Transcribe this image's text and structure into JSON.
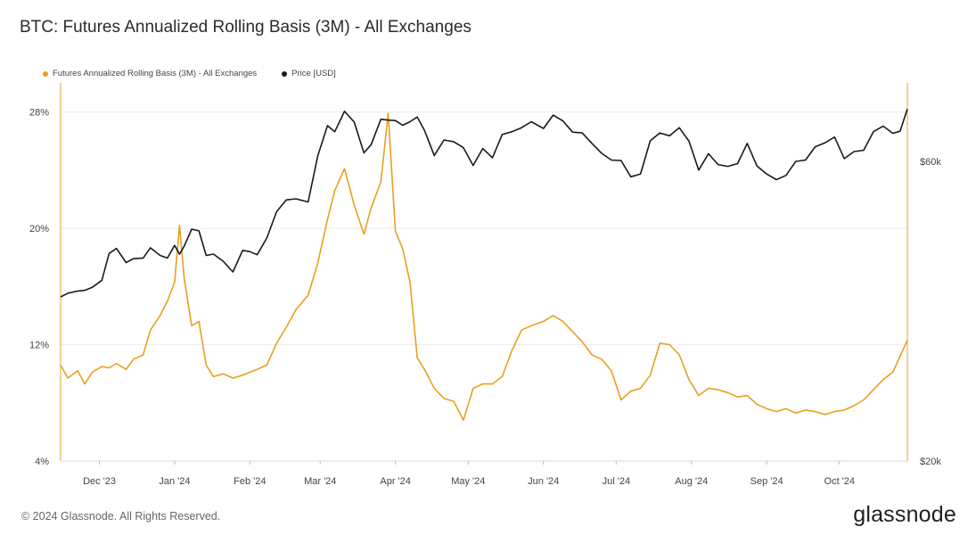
{
  "page": {
    "title": "BTC: Futures Annualized Rolling Basis (3M) - All Exchanges",
    "footer": "© 2024 Glassnode. All Rights Reserved.",
    "brand": "glassnode"
  },
  "chart_data": {
    "type": "line",
    "title": "BTC: Futures Annualized Rolling Basis (3M) - All Exchanges",
    "grid": true,
    "legend_placement": "top-left",
    "x": {
      "start": "2023-11-15",
      "end": "2024-10-29",
      "ticks": [
        {
          "label": "Dec '23",
          "date": "2023-12-01"
        },
        {
          "label": "Jan '24",
          "date": "2024-01-01"
        },
        {
          "label": "Feb '24",
          "date": "2024-02-01"
        },
        {
          "label": "Mar '24",
          "date": "2024-03-01"
        },
        {
          "label": "Apr '24",
          "date": "2024-04-01"
        },
        {
          "label": "May '24",
          "date": "2024-05-01"
        },
        {
          "label": "Jun '24",
          "date": "2024-06-01"
        },
        {
          "label": "Jul '24",
          "date": "2024-07-01"
        },
        {
          "label": "Aug '24",
          "date": "2024-08-01"
        },
        {
          "label": "Sep '24",
          "date": "2024-09-01"
        },
        {
          "label": "Oct '24",
          "date": "2024-10-01"
        }
      ]
    },
    "y_left": {
      "range": [
        4,
        30
      ],
      "ticks": [
        {
          "label": "4%",
          "value": 4
        },
        {
          "label": "12%",
          "value": 12
        },
        {
          "label": "20%",
          "value": 20
        },
        {
          "label": "28%",
          "value": 28
        }
      ]
    },
    "y_right": {
      "scale": "log",
      "range": [
        20000,
        80000
      ],
      "ticks": [
        {
          "label": "$20k",
          "value": 20000
        },
        {
          "label": "$60k",
          "value": 60000
        }
      ]
    },
    "series": [
      {
        "name": "Futures Annualized Rolling Basis (3M) - All Exchanges",
        "color": "#e8a020",
        "axis": "left",
        "points": [
          [
            "2023-11-15",
            10.6
          ],
          [
            "2023-11-18",
            9.7
          ],
          [
            "2023-11-22",
            10.2
          ],
          [
            "2023-11-25",
            9.3
          ],
          [
            "2023-11-28",
            10.1
          ],
          [
            "2023-12-02",
            10.5
          ],
          [
            "2023-12-05",
            10.4
          ],
          [
            "2023-12-08",
            10.7
          ],
          [
            "2023-12-12",
            10.3
          ],
          [
            "2023-12-15",
            11.0
          ],
          [
            "2023-12-19",
            11.3
          ],
          [
            "2023-12-22",
            13.0
          ],
          [
            "2023-12-26",
            14.0
          ],
          [
            "2023-12-29",
            15.0
          ],
          [
            "2024-01-01",
            16.3
          ],
          [
            "2024-01-03",
            20.2
          ],
          [
            "2024-01-05",
            16.5
          ],
          [
            "2024-01-08",
            13.3
          ],
          [
            "2024-01-11",
            13.6
          ],
          [
            "2024-01-14",
            10.6
          ],
          [
            "2024-01-17",
            9.8
          ],
          [
            "2024-01-21",
            10.0
          ],
          [
            "2024-01-25",
            9.7
          ],
          [
            "2024-01-29",
            9.9
          ],
          [
            "2024-02-01",
            10.1
          ],
          [
            "2024-02-04",
            10.3
          ],
          [
            "2024-02-08",
            10.6
          ],
          [
            "2024-02-12",
            12.1
          ],
          [
            "2024-02-16",
            13.2
          ],
          [
            "2024-02-20",
            14.4
          ],
          [
            "2024-02-25",
            15.4
          ],
          [
            "2024-02-29",
            17.6
          ],
          [
            "2024-03-04",
            20.6
          ],
          [
            "2024-03-07",
            22.6
          ],
          [
            "2024-03-11",
            24.1
          ],
          [
            "2024-03-15",
            21.6
          ],
          [
            "2024-03-19",
            19.6
          ],
          [
            "2024-03-22",
            21.4
          ],
          [
            "2024-03-26",
            23.2
          ],
          [
            "2024-03-29",
            27.9
          ],
          [
            "2024-04-01",
            19.8
          ],
          [
            "2024-04-04",
            18.6
          ],
          [
            "2024-04-07",
            16.3
          ],
          [
            "2024-04-10",
            11.1
          ],
          [
            "2024-04-13",
            10.3
          ],
          [
            "2024-04-17",
            9.0
          ],
          [
            "2024-04-21",
            8.3
          ],
          [
            "2024-04-25",
            8.1
          ],
          [
            "2024-04-29",
            6.8
          ],
          [
            "2024-05-03",
            9.0
          ],
          [
            "2024-05-07",
            9.3
          ],
          [
            "2024-05-11",
            9.3
          ],
          [
            "2024-05-15",
            9.8
          ],
          [
            "2024-05-19",
            11.6
          ],
          [
            "2024-05-23",
            13.0
          ],
          [
            "2024-05-27",
            13.3
          ],
          [
            "2024-06-01",
            13.6
          ],
          [
            "2024-06-05",
            14.0
          ],
          [
            "2024-06-09",
            13.6
          ],
          [
            "2024-06-13",
            12.9
          ],
          [
            "2024-06-17",
            12.2
          ],
          [
            "2024-06-21",
            11.3
          ],
          [
            "2024-06-25",
            11.0
          ],
          [
            "2024-06-29",
            10.2
          ],
          [
            "2024-07-03",
            8.2
          ],
          [
            "2024-07-07",
            8.8
          ],
          [
            "2024-07-11",
            9.0
          ],
          [
            "2024-07-15",
            9.9
          ],
          [
            "2024-07-19",
            12.1
          ],
          [
            "2024-07-23",
            12.0
          ],
          [
            "2024-07-27",
            11.3
          ],
          [
            "2024-07-31",
            9.6
          ],
          [
            "2024-08-04",
            8.5
          ],
          [
            "2024-08-08",
            9.0
          ],
          [
            "2024-08-12",
            8.9
          ],
          [
            "2024-08-16",
            8.7
          ],
          [
            "2024-08-20",
            8.4
          ],
          [
            "2024-08-24",
            8.5
          ],
          [
            "2024-08-28",
            7.9
          ],
          [
            "2024-09-01",
            7.6
          ],
          [
            "2024-09-05",
            7.4
          ],
          [
            "2024-09-09",
            7.6
          ],
          [
            "2024-09-13",
            7.3
          ],
          [
            "2024-09-17",
            7.5
          ],
          [
            "2024-09-21",
            7.4
          ],
          [
            "2024-09-25",
            7.2
          ],
          [
            "2024-09-29",
            7.4
          ],
          [
            "2024-10-03",
            7.5
          ],
          [
            "2024-10-07",
            7.8
          ],
          [
            "2024-10-11",
            8.2
          ],
          [
            "2024-10-15",
            8.9
          ],
          [
            "2024-10-19",
            9.6
          ],
          [
            "2024-10-23",
            10.1
          ],
          [
            "2024-10-26",
            11.2
          ],
          [
            "2024-10-29",
            12.3
          ]
        ]
      },
      {
        "name": "Price [USD]",
        "color": "#1a1a1a",
        "axis": "right",
        "points": [
          [
            "2023-11-15",
            36500
          ],
          [
            "2023-11-18",
            37000
          ],
          [
            "2023-11-22",
            37300
          ],
          [
            "2023-11-25",
            37400
          ],
          [
            "2023-11-28",
            37800
          ],
          [
            "2023-12-02",
            38800
          ],
          [
            "2023-12-05",
            42800
          ],
          [
            "2023-12-08",
            43600
          ],
          [
            "2023-12-12",
            41400
          ],
          [
            "2023-12-15",
            42000
          ],
          [
            "2023-12-19",
            42100
          ],
          [
            "2023-12-22",
            43700
          ],
          [
            "2023-12-26",
            42500
          ],
          [
            "2023-12-29",
            42100
          ],
          [
            "2024-01-01",
            44100
          ],
          [
            "2024-01-03",
            42700
          ],
          [
            "2024-01-05",
            44000
          ],
          [
            "2024-01-08",
            46800
          ],
          [
            "2024-01-11",
            46500
          ],
          [
            "2024-01-14",
            42500
          ],
          [
            "2024-01-17",
            42700
          ],
          [
            "2024-01-21",
            41600
          ],
          [
            "2024-01-25",
            40000
          ],
          [
            "2024-01-29",
            43300
          ],
          [
            "2024-02-01",
            43100
          ],
          [
            "2024-02-04",
            42600
          ],
          [
            "2024-02-08",
            45300
          ],
          [
            "2024-02-12",
            49900
          ],
          [
            "2024-02-16",
            52100
          ],
          [
            "2024-02-20",
            52300
          ],
          [
            "2024-02-25",
            51700
          ],
          [
            "2024-02-29",
            61200
          ],
          [
            "2024-03-04",
            68400
          ],
          [
            "2024-03-07",
            66900
          ],
          [
            "2024-03-11",
            72100
          ],
          [
            "2024-03-15",
            69300
          ],
          [
            "2024-03-19",
            61900
          ],
          [
            "2024-03-22",
            63800
          ],
          [
            "2024-03-26",
            70000
          ],
          [
            "2024-03-29",
            69800
          ],
          [
            "2024-04-01",
            69700
          ],
          [
            "2024-04-04",
            68500
          ],
          [
            "2024-04-07",
            69400
          ],
          [
            "2024-04-10",
            70600
          ],
          [
            "2024-04-13",
            67200
          ],
          [
            "2024-04-17",
            61300
          ],
          [
            "2024-04-21",
            64900
          ],
          [
            "2024-04-25",
            64500
          ],
          [
            "2024-04-29",
            63100
          ],
          [
            "2024-05-03",
            59100
          ],
          [
            "2024-05-07",
            62900
          ],
          [
            "2024-05-11",
            60800
          ],
          [
            "2024-05-15",
            66200
          ],
          [
            "2024-05-19",
            66900
          ],
          [
            "2024-05-23",
            67900
          ],
          [
            "2024-05-27",
            69400
          ],
          [
            "2024-06-01",
            67700
          ],
          [
            "2024-06-05",
            71100
          ],
          [
            "2024-06-09",
            69600
          ],
          [
            "2024-06-13",
            66800
          ],
          [
            "2024-06-17",
            66600
          ],
          [
            "2024-06-21",
            64100
          ],
          [
            "2024-06-25",
            61800
          ],
          [
            "2024-06-29",
            60300
          ],
          [
            "2024-07-03",
            60200
          ],
          [
            "2024-07-07",
            56700
          ],
          [
            "2024-07-11",
            57300
          ],
          [
            "2024-07-15",
            64700
          ],
          [
            "2024-07-19",
            66600
          ],
          [
            "2024-07-23",
            65900
          ],
          [
            "2024-07-27",
            67900
          ],
          [
            "2024-07-31",
            64600
          ],
          [
            "2024-08-04",
            58100
          ],
          [
            "2024-08-08",
            61700
          ],
          [
            "2024-08-12",
            59300
          ],
          [
            "2024-08-16",
            58900
          ],
          [
            "2024-08-20",
            59500
          ],
          [
            "2024-08-24",
            64100
          ],
          [
            "2024-08-28",
            59000
          ],
          [
            "2024-09-01",
            57300
          ],
          [
            "2024-09-05",
            56100
          ],
          [
            "2024-09-09",
            57000
          ],
          [
            "2024-09-13",
            60000
          ],
          [
            "2024-09-17",
            60300
          ],
          [
            "2024-09-21",
            63300
          ],
          [
            "2024-09-25",
            64200
          ],
          [
            "2024-09-29",
            65600
          ],
          [
            "2024-10-03",
            60600
          ],
          [
            "2024-10-07",
            62200
          ],
          [
            "2024-10-11",
            62500
          ],
          [
            "2024-10-15",
            66900
          ],
          [
            "2024-10-19",
            68300
          ],
          [
            "2024-10-23",
            66500
          ],
          [
            "2024-10-26",
            67000
          ],
          [
            "2024-10-29",
            72700
          ]
        ]
      }
    ]
  }
}
